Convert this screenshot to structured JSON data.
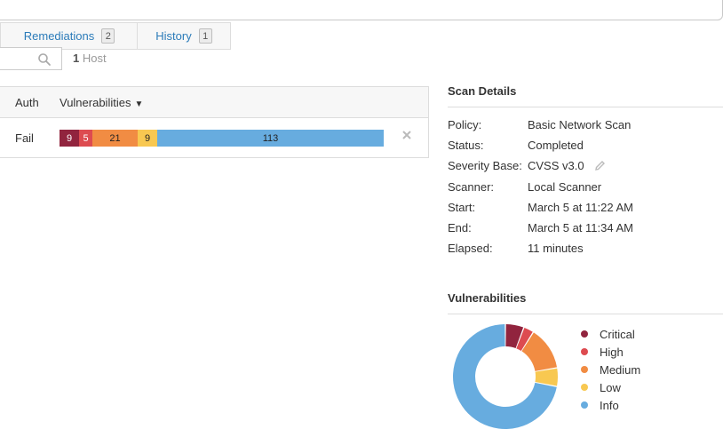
{
  "tabs": [
    {
      "label": "Remediations",
      "count": "2"
    },
    {
      "label": "History",
      "count": "1"
    }
  ],
  "search": {
    "placeholder": ""
  },
  "hosts": {
    "count": "1",
    "label": "Host"
  },
  "table": {
    "columns": {
      "auth": "Auth",
      "vulnerabilities": "Vulnerabilities",
      "sort_indicator": "▼"
    },
    "rows": [
      {
        "auth": "Fail",
        "critical": "9",
        "high": "5",
        "medium": "21",
        "low": "9",
        "info": "113"
      }
    ]
  },
  "scan_details": {
    "title": "Scan Details",
    "items": [
      {
        "label": "Policy:",
        "value": "Basic Network Scan"
      },
      {
        "label": "Status:",
        "value": "Completed"
      },
      {
        "label": "Severity Base:",
        "value": "CVSS v3.0"
      },
      {
        "label": "Scanner:",
        "value": "Local Scanner"
      },
      {
        "label": "Start:",
        "value": "March 5 at 11:22 AM"
      },
      {
        "label": "End:",
        "value": "March 5 at 11:34 AM"
      },
      {
        "label": "Elapsed:",
        "value": "11 minutes"
      }
    ]
  },
  "vulnerabilities": {
    "title": "Vulnerabilities",
    "legend": [
      {
        "label": "Critical",
        "color": "#91243e"
      },
      {
        "label": "High",
        "color": "#dd4b50"
      },
      {
        "label": "Medium",
        "color": "#f18c43"
      },
      {
        "label": "Low",
        "color": "#f8c851"
      },
      {
        "label": "Info",
        "color": "#67acdf"
      }
    ]
  },
  "chart_data": {
    "type": "pie",
    "categories": [
      "Critical",
      "High",
      "Medium",
      "Low",
      "Info"
    ],
    "values": [
      9,
      5,
      21,
      9,
      113
    ],
    "colors": [
      "#91243e",
      "#dd4b50",
      "#f18c43",
      "#f8c851",
      "#67acdf"
    ],
    "title": "Vulnerabilities",
    "legend_position": "right"
  },
  "icons": {
    "search": "search-icon",
    "remove": "close-icon",
    "edit": "pencil-icon"
  }
}
